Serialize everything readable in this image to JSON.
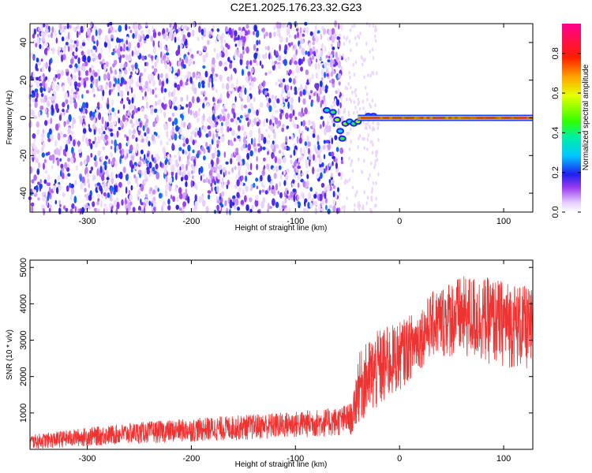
{
  "title": "C2E1.2025.176.23.32.G23",
  "colorbar": {
    "label": "Normalized spectral amplitude",
    "ticks": [
      "0.0",
      "0.2",
      "0.4",
      "0.6",
      "0.8"
    ],
    "tick_values": [
      0.0,
      0.2,
      0.4,
      0.6,
      0.8
    ],
    "range": [
      0,
      0.95
    ]
  },
  "chart_data": [
    {
      "type": "heatmap",
      "xlabel": "Height of straight line (km)",
      "ylabel": "Frequency (Hz)",
      "xlim": [
        -355,
        128
      ],
      "ylim": [
        -50,
        50
      ],
      "xticks": [
        -300,
        -200,
        -100,
        0,
        100
      ],
      "yticks": [
        -40,
        -20,
        0,
        20,
        40
      ],
      "grid": false,
      "description_of_features": {
        "noise_region_x": [
          -355,
          -55
        ],
        "noise_amplitude_range": [
          0.0,
          0.25
        ],
        "tone_start_x": -70,
        "tone_frequency_hz": 0,
        "tone_amplitude_range": [
          0.7,
          0.95
        ],
        "wobble_region_x": [
          -70,
          -35
        ],
        "wobble_frequency_range_hz": [
          -12,
          5
        ]
      }
    },
    {
      "type": "line",
      "xlabel": "Height of straight line (km)",
      "ylabel": "SNR (10 * v/v)",
      "xlim": [
        -355,
        128
      ],
      "ylim": [
        0,
        5200
      ],
      "xticks": [
        -300,
        -200,
        -100,
        0,
        100
      ],
      "yticks": [
        1000,
        2000,
        3000,
        4000,
        5000
      ],
      "grid": false,
      "series": [
        {
          "color": "#ee3333",
          "envelope_x": [
            -355,
            -300,
            -250,
            -200,
            -150,
            -100,
            -60,
            -45,
            -40,
            -30,
            -20,
            -10,
            0,
            10,
            20,
            30,
            50,
            70,
            90,
            110,
            128
          ],
          "envelope_low": [
            0,
            80,
            150,
            200,
            250,
            300,
            350,
            400,
            700,
            900,
            1000,
            1300,
            1600,
            1900,
            2200,
            2500,
            2500,
            2400,
            2300,
            2200,
            2100
          ],
          "envelope_high": [
            400,
            600,
            750,
            850,
            950,
            1050,
            1150,
            1300,
            2600,
            3000,
            3300,
            3400,
            3500,
            3700,
            3900,
            4300,
            4700,
            4800,
            4700,
            4600,
            4400
          ]
        }
      ]
    }
  ]
}
